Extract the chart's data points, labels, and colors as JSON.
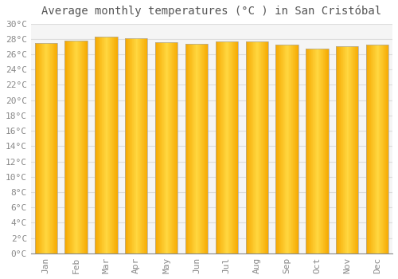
{
  "title": "Average monthly temperatures (°C ) in San Cristóbal",
  "months": [
    "Jan",
    "Feb",
    "Mar",
    "Apr",
    "May",
    "Jun",
    "Jul",
    "Aug",
    "Sep",
    "Oct",
    "Nov",
    "Dec"
  ],
  "values": [
    27.5,
    27.8,
    28.3,
    28.1,
    27.6,
    27.4,
    27.7,
    27.7,
    27.2,
    26.7,
    27.0,
    27.2
  ],
  "ylim": [
    0,
    30
  ],
  "ytick_step": 2,
  "bar_color_center": "#FFD740",
  "bar_color_edge": "#F5A800",
  "background_color": "#ffffff",
  "plot_bg_color": "#f5f5f5",
  "grid_color": "#dddddd",
  "title_fontsize": 10,
  "tick_fontsize": 8,
  "title_color": "#555555",
  "tick_color": "#888888",
  "bar_width": 0.75,
  "n_gradient_strips": 40
}
